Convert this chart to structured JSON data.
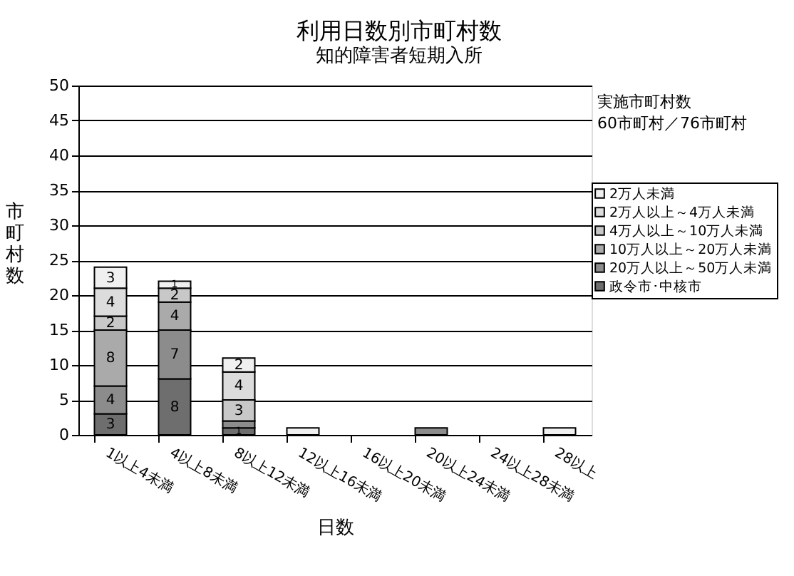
{
  "chart_data": {
    "type": "bar",
    "title": "利用日数別市町村数",
    "subtitle": "知的障害者短期入所",
    "xlabel": "日数",
    "ylabel": "市町村数",
    "stacked": true,
    "legend": "right",
    "grid": "y",
    "categories": [
      "1以上4未満",
      "4以上8未満",
      "8以上12未満",
      "12以上16未満",
      "16以上20未満",
      "20以上24未満",
      "24以上28未満",
      "28以上"
    ],
    "ylim": [
      0,
      50
    ],
    "yticks": [
      0,
      5,
      10,
      15,
      20,
      25,
      30,
      35,
      40,
      45,
      50
    ],
    "annotations": [
      "実施市町村数",
      "60市町村／76市町村"
    ],
    "series": [
      {
        "name": "政令市･中核市",
        "color": "#6e6e6e",
        "values": [
          3,
          8,
          1,
          null,
          null,
          null,
          null,
          null
        ],
        "value_labels": [
          "3",
          "8",
          "1",
          null,
          null,
          null,
          null,
          null
        ]
      },
      {
        "name": "20万人以上～50万人未満",
        "color": "#8c8c8c",
        "values": [
          4,
          7,
          1,
          null,
          null,
          1,
          null,
          null
        ],
        "value_labels": [
          "4",
          "7",
          null,
          null,
          null,
          null,
          null,
          null
        ]
      },
      {
        "name": "10万人以上～20万人未満",
        "color": "#aaaaaa",
        "values": [
          8,
          4,
          null,
          null,
          null,
          null,
          null,
          null
        ],
        "value_labels": [
          "8",
          "4",
          null,
          null,
          null,
          null,
          null,
          null
        ]
      },
      {
        "name": "4万人以上～10万人未満",
        "color": "#c8c8c8",
        "values": [
          2,
          2,
          3,
          null,
          null,
          null,
          null,
          null
        ],
        "value_labels": [
          "2",
          "2",
          "3",
          null,
          null,
          null,
          null,
          null
        ]
      },
      {
        "name": "2万人以上～4万人未満",
        "color": "#dcdcdc",
        "values": [
          4,
          null,
          4,
          null,
          null,
          null,
          null,
          null
        ],
        "value_labels": [
          "4",
          null,
          "4",
          null,
          null,
          null,
          null,
          null
        ]
      },
      {
        "name": "2万人未満",
        "color": "#f0f0f0",
        "values": [
          3,
          1,
          2,
          1,
          null,
          null,
          null,
          1
        ],
        "value_labels": [
          "3",
          "1",
          "2",
          null,
          null,
          null,
          null,
          null
        ]
      }
    ]
  }
}
